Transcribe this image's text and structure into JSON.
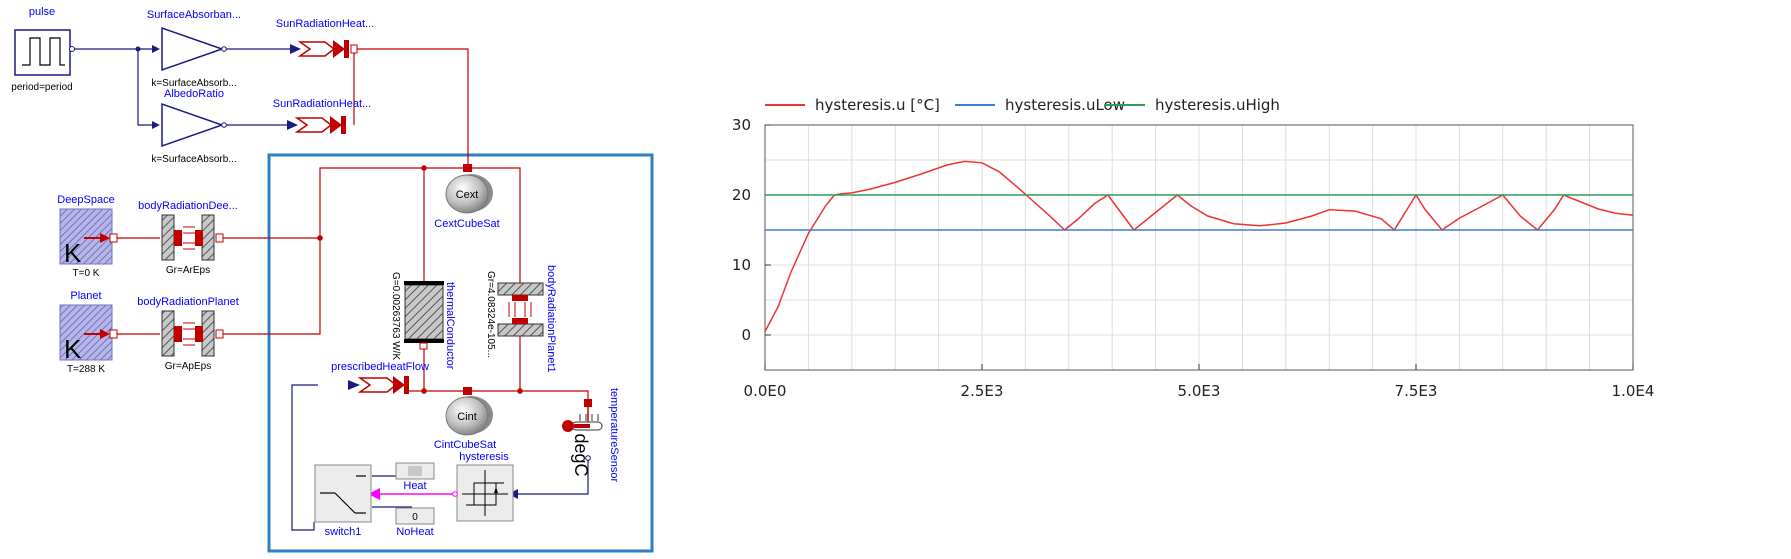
{
  "diagram": {
    "pulse": {
      "name": "pulse",
      "param": "period=period"
    },
    "gain1": {
      "name": "SurfaceAbsorban...",
      "param": "k=SurfaceAbsorb..."
    },
    "gain2": {
      "name": "AlbedoRatio",
      "param": "k=SurfaceAbsorb..."
    },
    "sunflow1": {
      "name": "SunRadiationHeat..."
    },
    "sunflow2": {
      "name": "SunRadiationHeat..."
    },
    "deepspace": {
      "name": "DeepSpace",
      "param": "T=0 K",
      "symbol": "K"
    },
    "planet": {
      "name": "Planet",
      "param": "T=288 K",
      "symbol": "K"
    },
    "bodyRadDeep": {
      "name": "bodyRadiationDee...",
      "param": "Gr=ArEps"
    },
    "bodyRadPlanet": {
      "name": "bodyRadiationPlanet",
      "param": "Gr=ApEps"
    },
    "cext": {
      "name": "CextCubeSat",
      "symbol": "Cext"
    },
    "cint": {
      "name": "CintCubeSat",
      "symbol": "Cint"
    },
    "thermalConductor": {
      "name": "thermalConductor",
      "param": "G=0.00263763 W/K"
    },
    "bodyRadPlanet1": {
      "name": "bodyRadiationPlanet1",
      "param": "Gr=4.08324e-105..."
    },
    "prescribedHeatFlow": {
      "name": "prescribedHeatFlow"
    },
    "tempSensor": {
      "name": "temperatureSensor",
      "unit": "degC"
    },
    "hysteresis": {
      "name": "hysteresis"
    },
    "heat": {
      "name": "Heat"
    },
    "noheat": {
      "name": "NoHeat",
      "value": "0"
    },
    "switch1": {
      "name": "switch1"
    }
  },
  "chart_data": {
    "type": "line",
    "legend": [
      "hysteresis.u [°C]",
      "hysteresis.uLow",
      "hysteresis.uHigh"
    ],
    "legend_position": "top-left",
    "colors": {
      "u": "#ee3333",
      "uLow": "#3b7fd4",
      "uHigh": "#2e9e5b",
      "grid": "#dddddd",
      "frame": "#555555"
    },
    "xlim": [
      0,
      10000
    ],
    "ylim": [
      -5,
      30
    ],
    "grid": true,
    "x_ticks": [
      0,
      2500,
      5000,
      7500,
      10000
    ],
    "x_tick_labels": [
      "0.0E0",
      "2.5E3",
      "5.0E3",
      "7.5E3",
      "1.0E4"
    ],
    "y_ticks": [
      0,
      10,
      20,
      30
    ],
    "y_tick_labels": [
      "0",
      "10",
      "20",
      "30"
    ],
    "series": [
      {
        "name": "hysteresis.u [°C]",
        "key": "u",
        "x": [
          0,
          150,
          300,
          500,
          700,
          800,
          900,
          1000,
          1200,
          1500,
          1800,
          2100,
          2300,
          2500,
          2700,
          2900,
          3100,
          3300,
          3450,
          3600,
          3800,
          3950,
          4100,
          4250,
          4400,
          4550,
          4750,
          4900,
          5100,
          5400,
          5700,
          6000,
          6300,
          6500,
          6800,
          7100,
          7250,
          7500,
          7600,
          7800,
          8000,
          8200,
          8500,
          8700,
          8900,
          9100,
          9200,
          9400,
          9600,
          9800,
          10000
        ],
        "y": [
          0.5,
          4,
          9,
          14.5,
          18.5,
          20,
          20.2,
          20.3,
          20.8,
          21.8,
          23,
          24.3,
          24.8,
          24.6,
          23.3,
          21.2,
          19,
          16.8,
          15,
          16.5,
          18.8,
          20,
          17.5,
          15,
          16.5,
          18,
          20,
          18.5,
          17,
          15.9,
          15.6,
          16,
          17,
          17.9,
          17.7,
          16.6,
          15,
          20,
          18,
          15,
          16.7,
          18,
          20,
          17,
          15,
          18,
          20,
          19,
          18,
          17.4,
          17.1
        ]
      },
      {
        "name": "hysteresis.uLow",
        "key": "uLow",
        "x": [
          0,
          10000
        ],
        "y": [
          15,
          15
        ]
      },
      {
        "name": "hysteresis.uHigh",
        "key": "uHigh",
        "x": [
          0,
          10000
        ],
        "y": [
          20,
          20
        ]
      }
    ]
  }
}
